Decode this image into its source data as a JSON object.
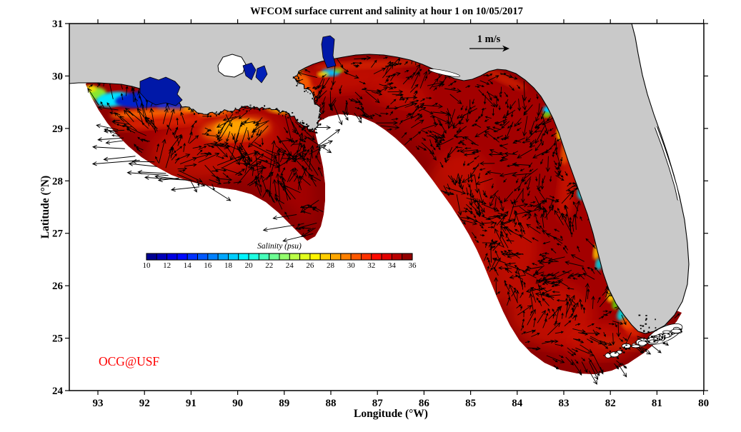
{
  "chart_data": {
    "type": "map_vector_field",
    "title": "WFCOM surface current and salinity at hour 1 on 10/05/2017",
    "model": "WFCOM",
    "forecast_hour": 1,
    "date": "10/05/2017",
    "region": "Gulf of Mexico / West Florida shelf model domain",
    "x_axis": {
      "label": "Longitude (°W)",
      "ticks": [
        93,
        92,
        91,
        90,
        89,
        88,
        87,
        86,
        85,
        84,
        83,
        82,
        81,
        80
      ],
      "range_deg_w": [
        93.6,
        80.0
      ]
    },
    "y_axis": {
      "label": "Latitude (°N)",
      "ticks": [
        31,
        30,
        29,
        28,
        27,
        26,
        25,
        24
      ],
      "range_deg_n": [
        24,
        31
      ]
    },
    "colorbar": {
      "title": "Salinity (psu)",
      "min": 10,
      "max": 36,
      "ticks": [
        10,
        12,
        14,
        16,
        18,
        20,
        22,
        24,
        26,
        28,
        30,
        32,
        34,
        36
      ],
      "colormap": "jet",
      "segment_colors": [
        "#000093",
        "#0000BA",
        "#0000E2",
        "#000AFF",
        "#0031FF",
        "#0058FF",
        "#0080FF",
        "#00A7FF",
        "#00CEFF",
        "#00F5FF",
        "#1DFFE2",
        "#45FFBA",
        "#6CFF93",
        "#93FF6C",
        "#BAFF45",
        "#E2FF1D",
        "#FFF500",
        "#FFCE00",
        "#FFA700",
        "#FF8000",
        "#FF5800",
        "#FF3100",
        "#FF0A00",
        "#E20000",
        "#BA0000",
        "#930000"
      ]
    },
    "vector_key": {
      "label": "1 m/s",
      "speed_mps": 1
    },
    "credit": "OCG@USF",
    "field_summary": [
      {
        "feature": "Open shelf water (most of domain)",
        "salinity_psu": "34-36",
        "appearance": "dark red"
      },
      {
        "feature": "Texas coast near 93°W",
        "salinity_psu": "18-26 gradient",
        "appearance": "green-cyan band at domain tip"
      },
      {
        "feature": "Galveston / Sabine / Calcasieu bays",
        "salinity_psu": "10-14",
        "appearance": "dark blue coastal band"
      },
      {
        "feature": "Atchafalaya / Terrebonne plume (~91°W 29°N)",
        "salinity_psu": "26-31",
        "appearance": "yellow-orange patch"
      },
      {
        "feature": "Mississippi delta east side",
        "salinity_psu": "20-30",
        "appearance": "cyan-yellow-orange streaks"
      },
      {
        "feature": "Mobile Bay (~88°W)",
        "salinity_psu": "10-20",
        "appearance": "dark blue bay, cyan plume at mouth"
      },
      {
        "feature": "Pensacola / Choctawhatchee bays",
        "salinity_psu": "16-22",
        "appearance": "small cyan patches"
      },
      {
        "feature": "Suwannee / Cedar Key (~83.3°W 29.1°N)",
        "salinity_psu": "14-30",
        "appearance": "cyan spot, yellow-orange fringe"
      },
      {
        "feature": "Tampa Bay",
        "salinity_psu": "18-24",
        "appearance": "cyan patch"
      },
      {
        "feature": "Charlotte Harbor",
        "salinity_psu": "20-26",
        "appearance": "small cyan patch"
      },
      {
        "feature": "SW Florida / Everglades coast",
        "salinity_psu": "20-32 gradient",
        "appearance": "yellow-green-cyan-orange band"
      },
      {
        "feature": "Florida Bay",
        "salinity_psu": "18-24",
        "appearance": "small cyan spot"
      },
      {
        "feature": "Deep Gulf and Atlantic",
        "salinity_psu": null,
        "appearance": "white (outside model domain)"
      }
    ],
    "currents_note": "Black quiver arrows over entire colored domain; reference arrow 1 m/s; long westward vectors leave the southwest domain edge near 92–91°W, 28°N; swirling field elsewhere."
  },
  "style": {
    "background": "#ffffff",
    "land_color": "#c9c9c9",
    "coast_color": "#000000",
    "domain_base_color": "#a30000",
    "bright_shelf_color": "#e01e00",
    "arrow_color": "#000000",
    "watermark_color": "#ff0000",
    "axis_color": "#000000"
  }
}
